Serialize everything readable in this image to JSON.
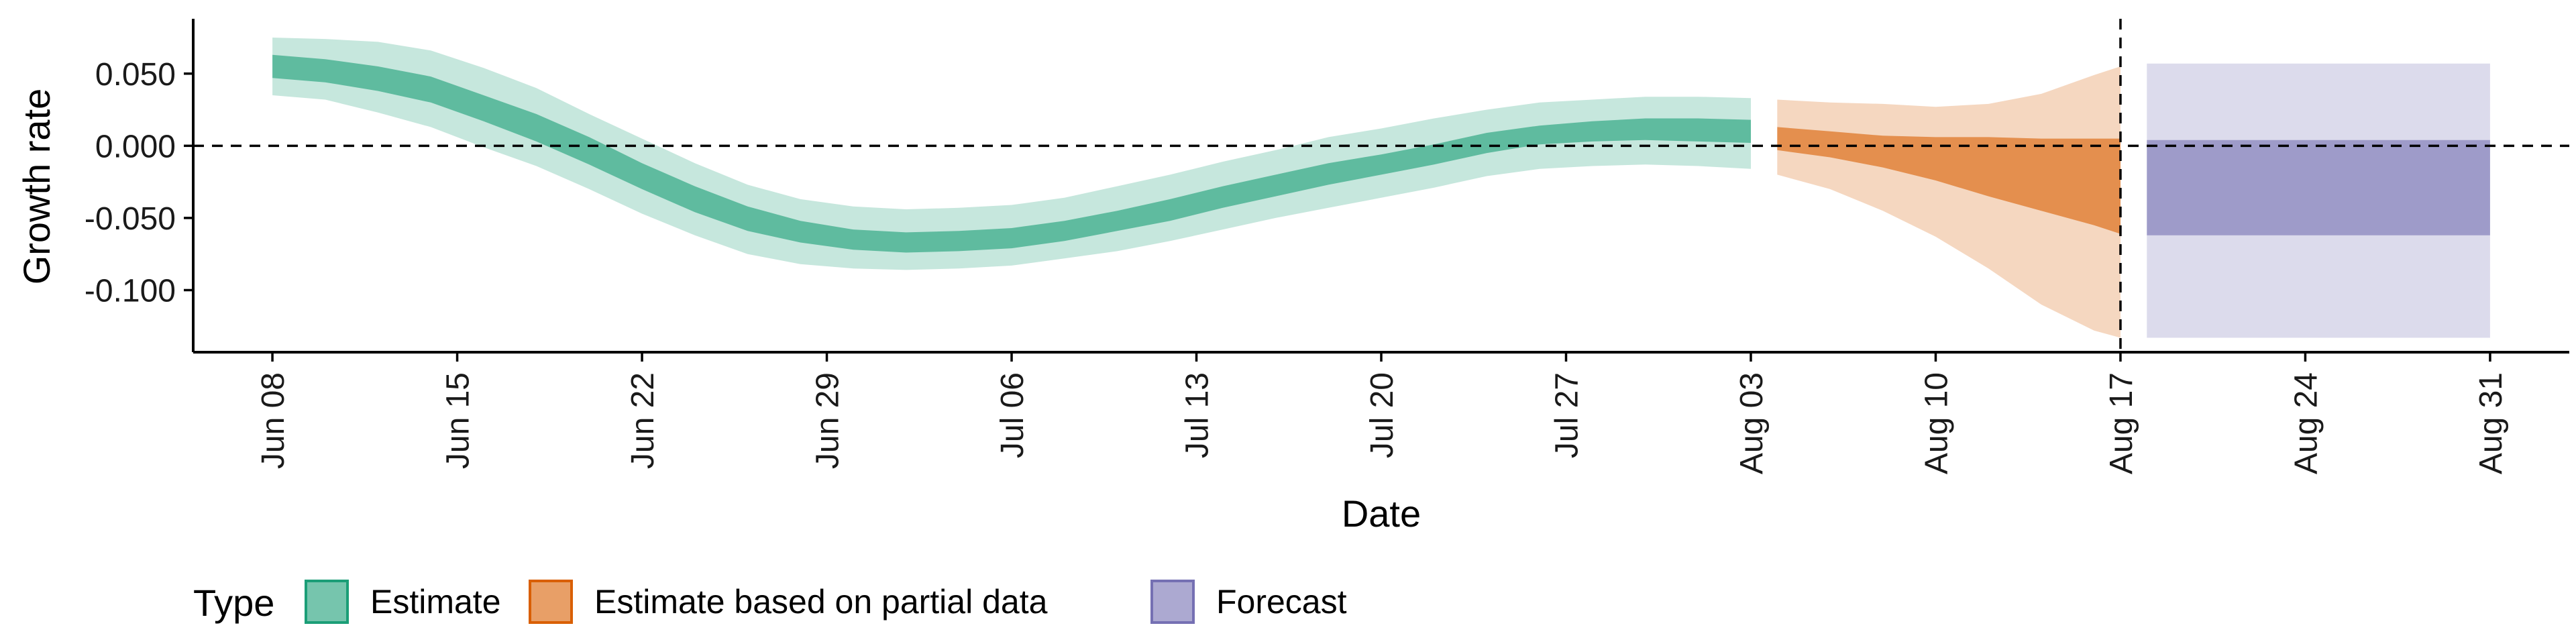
{
  "chart_data": {
    "type": "area",
    "title": "",
    "xlabel": "Date",
    "ylabel": "Growth rate",
    "xlim": [
      "2020-06-05",
      "2020-09-03"
    ],
    "ylim": [
      -0.143,
      0.088
    ],
    "x_ticks": [
      "2020-06-08",
      "2020-06-15",
      "2020-06-22",
      "2020-06-29",
      "2020-07-06",
      "2020-07-13",
      "2020-07-20",
      "2020-07-27",
      "2020-08-03",
      "2020-08-10",
      "2020-08-17",
      "2020-08-24",
      "2020-08-31"
    ],
    "x_tick_labels": [
      "Jun 08",
      "Jun 15",
      "Jun 22",
      "Jun 29",
      "Jul 06",
      "Jul 13",
      "Jul 20",
      "Jul 27",
      "Aug 03",
      "Aug 10",
      "Aug 17",
      "Aug 24",
      "Aug 31"
    ],
    "y_ticks": [
      0.05,
      0.0,
      -0.05,
      -0.1
    ],
    "y_tick_labels": [
      "0.050",
      "0.000",
      "-0.050",
      "-0.100"
    ],
    "reference_lines": {
      "horizontal_y": 0.0,
      "vertical_x": "2020-08-17",
      "style": "dashed"
    },
    "grid": false,
    "legend": {
      "title": "Type",
      "position": "bottom-left",
      "entries": [
        "Estimate",
        "Estimate based on partial data",
        "Forecast"
      ]
    },
    "colors": {
      "Estimate": "#1b9e77",
      "Estimate based on partial data": "#d95f02",
      "Forecast": "#7570b3"
    },
    "series": [
      {
        "name": "Estimate",
        "x": [
          "2020-06-08",
          "2020-06-10",
          "2020-06-12",
          "2020-06-14",
          "2020-06-16",
          "2020-06-18",
          "2020-06-20",
          "2020-06-22",
          "2020-06-24",
          "2020-06-26",
          "2020-06-28",
          "2020-06-30",
          "2020-07-02",
          "2020-07-04",
          "2020-07-06",
          "2020-07-08",
          "2020-07-10",
          "2020-07-12",
          "2020-07-14",
          "2020-07-16",
          "2020-07-18",
          "2020-07-20",
          "2020-07-22",
          "2020-07-24",
          "2020-07-26",
          "2020-07-28",
          "2020-07-30",
          "2020-08-01",
          "2020-08-03"
        ],
        "inner_upper": [
          0.063,
          0.06,
          0.055,
          0.048,
          0.035,
          0.022,
          0.006,
          -0.012,
          -0.028,
          -0.042,
          -0.052,
          -0.058,
          -0.06,
          -0.059,
          -0.057,
          -0.052,
          -0.045,
          -0.037,
          -0.028,
          -0.02,
          -0.012,
          -0.006,
          0.001,
          0.009,
          0.014,
          0.017,
          0.019,
          0.019,
          0.018
        ],
        "inner_lower": [
          0.047,
          0.044,
          0.038,
          0.03,
          0.017,
          0.003,
          -0.013,
          -0.03,
          -0.046,
          -0.059,
          -0.067,
          -0.072,
          -0.074,
          -0.073,
          -0.071,
          -0.066,
          -0.059,
          -0.052,
          -0.043,
          -0.035,
          -0.027,
          -0.02,
          -0.013,
          -0.005,
          0.001,
          0.003,
          0.004,
          0.003,
          0.002
        ],
        "outer_upper": [
          0.075,
          0.074,
          0.072,
          0.066,
          0.054,
          0.04,
          0.022,
          0.005,
          -0.012,
          -0.027,
          -0.037,
          -0.042,
          -0.044,
          -0.043,
          -0.041,
          -0.036,
          -0.028,
          -0.02,
          -0.011,
          -0.003,
          0.006,
          0.012,
          0.019,
          0.025,
          0.03,
          0.032,
          0.034,
          0.034,
          0.033
        ],
        "outer_lower": [
          0.035,
          0.032,
          0.023,
          0.013,
          -0.001,
          -0.014,
          -0.03,
          -0.047,
          -0.062,
          -0.075,
          -0.082,
          -0.085,
          -0.086,
          -0.085,
          -0.083,
          -0.078,
          -0.073,
          -0.066,
          -0.058,
          -0.05,
          -0.043,
          -0.036,
          -0.029,
          -0.021,
          -0.016,
          -0.014,
          -0.013,
          -0.014,
          -0.016
        ]
      },
      {
        "name": "Estimate based on partial data",
        "x": [
          "2020-08-04",
          "2020-08-06",
          "2020-08-08",
          "2020-08-10",
          "2020-08-12",
          "2020-08-14",
          "2020-08-16",
          "2020-08-17"
        ],
        "inner_upper": [
          0.013,
          0.01,
          0.007,
          0.006,
          0.006,
          0.005,
          0.005,
          0.005
        ],
        "inner_lower": [
          -0.003,
          -0.008,
          -0.015,
          -0.024,
          -0.035,
          -0.045,
          -0.055,
          -0.061
        ],
        "outer_upper": [
          0.032,
          0.03,
          0.029,
          0.027,
          0.029,
          0.036,
          0.049,
          0.055
        ],
        "outer_lower": [
          -0.02,
          -0.03,
          -0.045,
          -0.063,
          -0.085,
          -0.11,
          -0.128,
          -0.133
        ]
      },
      {
        "name": "Forecast",
        "x": [
          "2020-08-18",
          "2020-08-31"
        ],
        "inner_upper": [
          0.004,
          0.004
        ],
        "inner_lower": [
          -0.062,
          -0.062
        ],
        "outer_upper": [
          0.057,
          0.057
        ],
        "outer_lower": [
          -0.133,
          -0.133
        ]
      }
    ]
  }
}
